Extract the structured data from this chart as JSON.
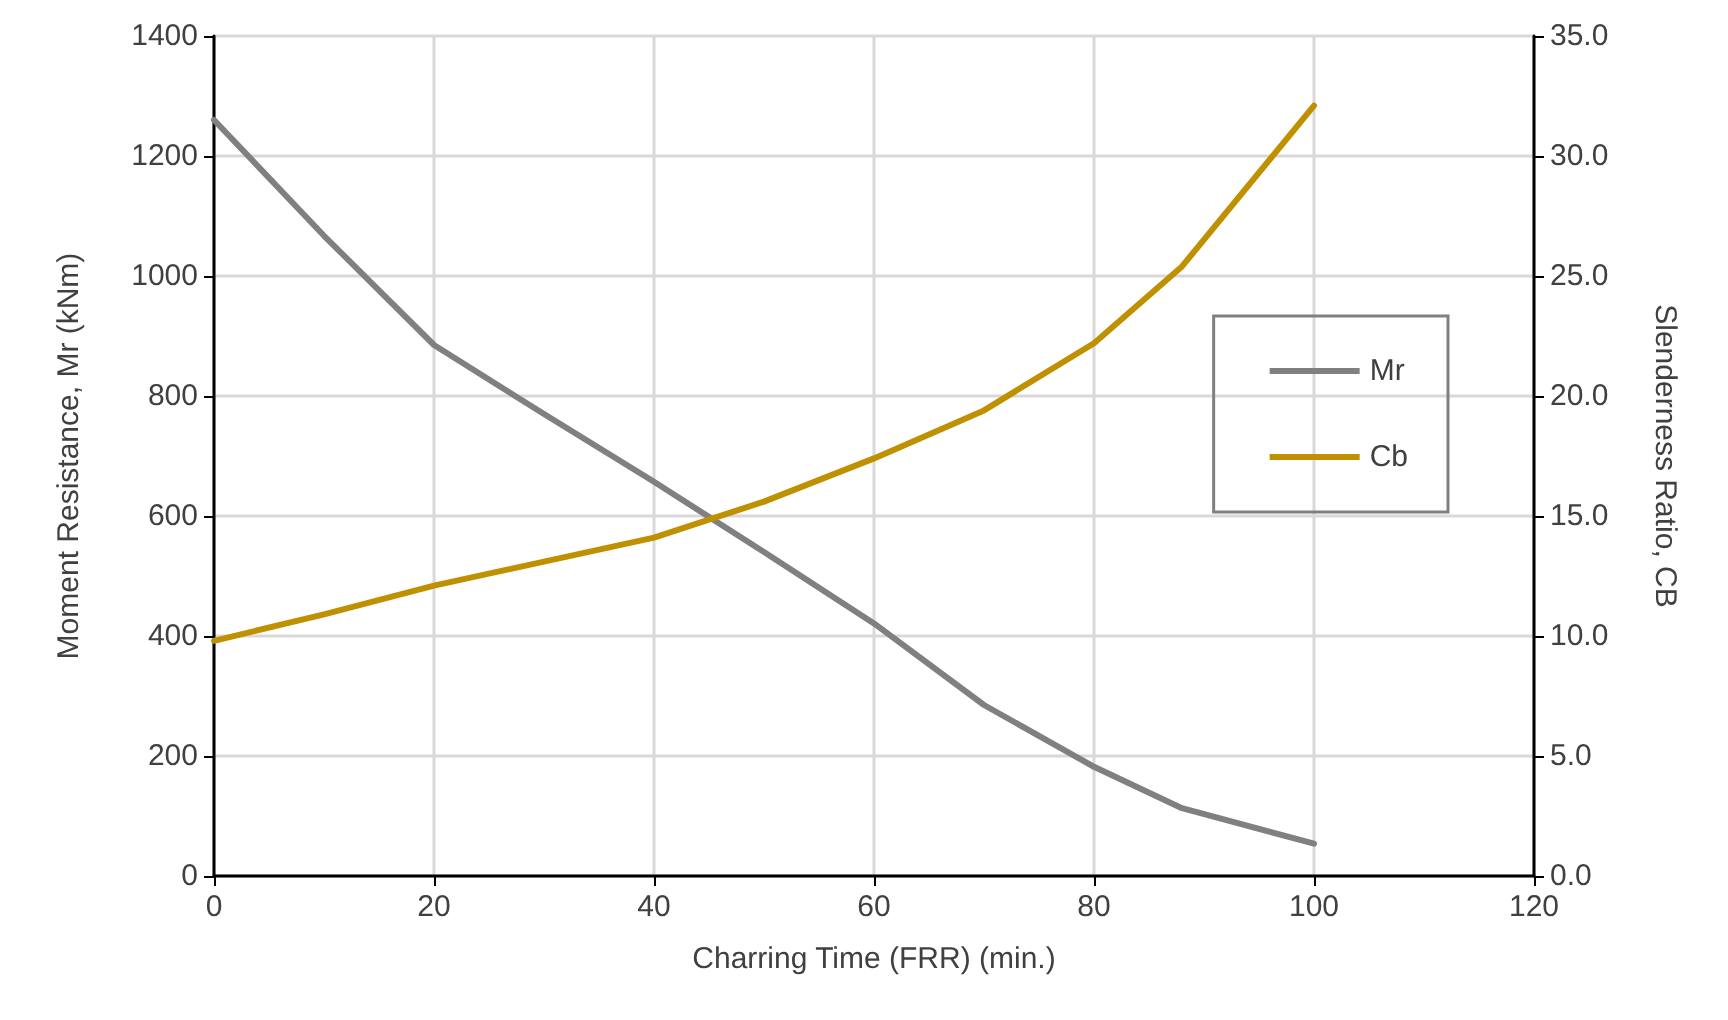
{
  "chart_data": {
    "type": "line",
    "xlabel": "Charring Time (FRR) (min.)",
    "ylabel": "Moment Resistance, Mr (kNm)",
    "y2label": "Slenderness Ratio, CB",
    "x": [
      0,
      10,
      20,
      30,
      40,
      50,
      60,
      70,
      80,
      88,
      100
    ],
    "series": [
      {
        "name": "Mr",
        "color": "#808080",
        "values": [
          1260,
          1067,
          885,
          770,
          657,
          540,
          421,
          285,
          182,
          113,
          54
        ]
      },
      {
        "name": "Cb",
        "color": "#bf9000",
        "axis": "y2",
        "values": [
          9.8,
          10.9,
          12.1,
          13.1,
          14.1,
          15.6,
          17.4,
          19.4,
          22.2,
          25.4,
          32.1
        ]
      }
    ],
    "xlim": [
      0,
      120
    ],
    "xticks": [
      0,
      20,
      40,
      60,
      80,
      100,
      120
    ],
    "ylim": [
      0,
      1400
    ],
    "yticks": [
      0,
      200,
      400,
      600,
      800,
      1000,
      1200,
      1400
    ],
    "y2lim": [
      0,
      35
    ],
    "y2ticks": [
      {
        "value": 0,
        "label": "0.0"
      },
      {
        "value": 5,
        "label": "5.0"
      },
      {
        "value": 10,
        "label": "10.0"
      },
      {
        "value": 15,
        "label": "15.0"
      },
      {
        "value": 20,
        "label": "20.0"
      },
      {
        "value": 25,
        "label": "25.0"
      },
      {
        "value": 30,
        "label": "30.0"
      },
      {
        "value": 35,
        "label": "35.0"
      }
    ],
    "grid": true,
    "legend": "right",
    "marker": "none",
    "line_style": "solid"
  }
}
